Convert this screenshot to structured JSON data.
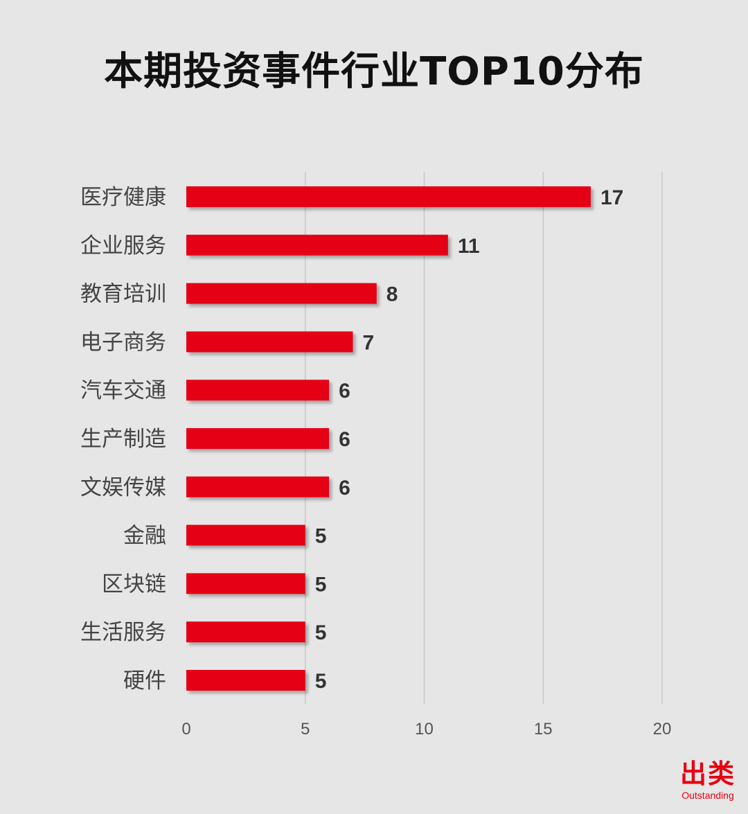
{
  "chart_data": {
    "type": "bar",
    "orientation": "horizontal",
    "title": "本期投资事件行业TOP10分布",
    "categories": [
      "医疗健康",
      "企业服务",
      "教育培训",
      "电子商务",
      "汽车交通",
      "生产制造",
      "文娱传媒",
      "金融",
      "区块链",
      "生活服务",
      "硬件"
    ],
    "values": [
      17,
      11,
      8,
      7,
      6,
      6,
      6,
      5,
      5,
      5,
      5
    ],
    "xlim": [
      0,
      20
    ],
    "xticks": [
      "0",
      "5",
      "10",
      "15",
      "20"
    ],
    "grid": true,
    "legend": false,
    "bar_color": "#e60012"
  },
  "brand": {
    "name": "出类",
    "tagline": "Outstanding"
  },
  "colors": {
    "background": "#e6e6e6",
    "bar": "#e60012",
    "grid": "#c8c8c8",
    "category_text": "#444444",
    "value_text": "#333333",
    "tick_text": "#555555",
    "brand": "#e60012"
  }
}
